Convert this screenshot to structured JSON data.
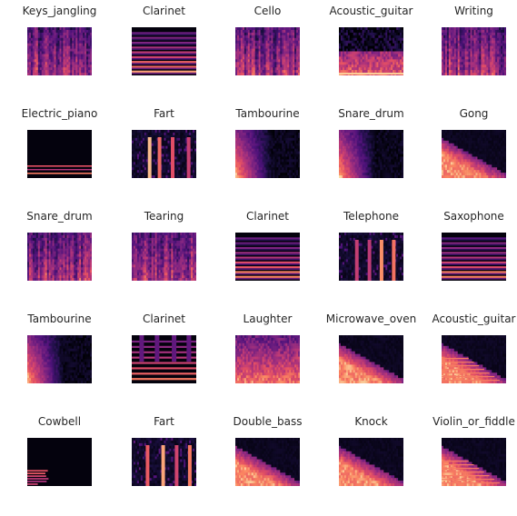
{
  "figure": {
    "title": "",
    "spectrograms": [
      {
        "label": "Keys_jangling",
        "pattern": "dense-vertical"
      },
      {
        "label": "Clarinet",
        "pattern": "harmonic"
      },
      {
        "label": "Cello",
        "pattern": "dense-vertical"
      },
      {
        "label": "Acoustic_guitar",
        "pattern": "noisy-low"
      },
      {
        "label": "Writing",
        "pattern": "dense-vertical"
      },
      {
        "label": "Electric_piano",
        "pattern": "sparse-bands"
      },
      {
        "label": "Fart",
        "pattern": "bursts"
      },
      {
        "label": "Tambourine",
        "pattern": "decay-left"
      },
      {
        "label": "Snare_drum",
        "pattern": "decay-left"
      },
      {
        "label": "Gong",
        "pattern": "diagonal"
      },
      {
        "label": "Snare_drum",
        "pattern": "dense-vertical"
      },
      {
        "label": "Tearing",
        "pattern": "dense-vertical"
      },
      {
        "label": "Clarinet",
        "pattern": "harmonic"
      },
      {
        "label": "Telephone",
        "pattern": "bursts"
      },
      {
        "label": "Saxophone",
        "pattern": "harmonic"
      },
      {
        "label": "Tambourine",
        "pattern": "decay-left"
      },
      {
        "label": "Clarinet",
        "pattern": "harmonic-bursts"
      },
      {
        "label": "Laughter",
        "pattern": "warm-full"
      },
      {
        "label": "Microwave_oven",
        "pattern": "diagonal"
      },
      {
        "label": "Acoustic_guitar",
        "pattern": "diagonal-harmonic"
      },
      {
        "label": "Cowbell",
        "pattern": "sparse-low"
      },
      {
        "label": "Fart",
        "pattern": "bursts"
      },
      {
        "label": "Double_bass",
        "pattern": "diagonal"
      },
      {
        "label": "Knock",
        "pattern": "diagonal"
      },
      {
        "label": "Violin_or_fiddle",
        "pattern": "diagonal-harmonic"
      }
    ]
  }
}
